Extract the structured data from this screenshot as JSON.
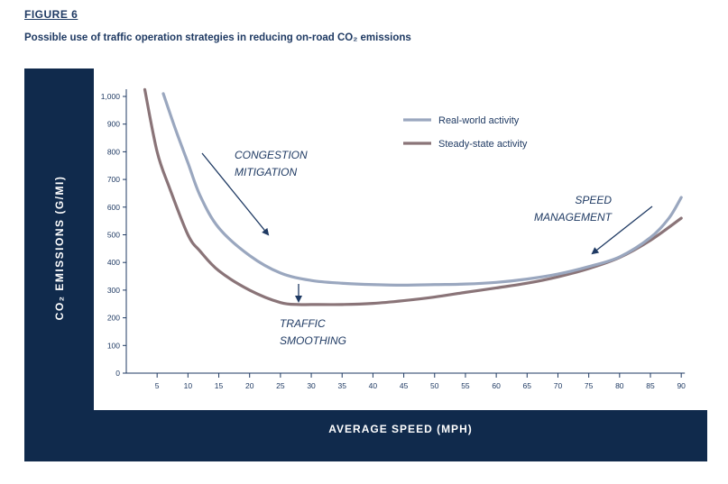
{
  "figure": {
    "label": "FIGURE 6",
    "caption": "Possible use of traffic operation strategies in reducing on-road CO₂ emissions"
  },
  "chart_data": {
    "type": "line",
    "title": "",
    "xlabel": "AVERAGE SPEED (MPH)",
    "ylabel": "CO₂ EMISSIONS (G/MI)",
    "xlim": [
      0,
      90
    ],
    "ylim": [
      0,
      1000
    ],
    "xticks": [
      "5",
      "10",
      "15",
      "20",
      "25",
      "30",
      "35",
      "40",
      "45",
      "50",
      "55",
      "60",
      "65",
      "70",
      "75",
      "80",
      "85",
      "90"
    ],
    "yticks": [
      "0",
      "100",
      "200",
      "300",
      "400",
      "500",
      "600",
      "700",
      "800",
      "900",
      "1,000"
    ],
    "grid": false,
    "legend_position": "top-right",
    "series": [
      {
        "name": "Real-world activity",
        "color": "#9aa7bf",
        "x": [
          6,
          8,
          10,
          12,
          15,
          20,
          25,
          30,
          35,
          40,
          45,
          50,
          55,
          60,
          65,
          70,
          75,
          80,
          85,
          88,
          90
        ],
        "y": [
          1010,
          880,
          760,
          640,
          525,
          425,
          362,
          335,
          325,
          320,
          318,
          320,
          322,
          328,
          340,
          358,
          385,
          420,
          490,
          560,
          635
        ]
      },
      {
        "name": "Steady-state activity",
        "color": "#8a7478",
        "x": [
          3,
          5,
          7,
          10,
          12,
          15,
          20,
          25,
          28,
          30,
          35,
          40,
          45,
          50,
          55,
          60,
          65,
          70,
          75,
          80,
          85,
          90
        ],
        "y": [
          1025,
          800,
          670,
          500,
          440,
          370,
          300,
          255,
          248,
          248,
          248,
          252,
          262,
          275,
          292,
          308,
          325,
          348,
          378,
          418,
          480,
          560
        ]
      }
    ],
    "annotations": [
      {
        "id": "congestion",
        "lines": [
          "CONGESTION",
          "MITIGATION"
        ]
      },
      {
        "id": "smoothing",
        "lines": [
          "TRAFFIC",
          "SMOOTHING"
        ]
      },
      {
        "id": "speed",
        "lines": [
          "SPEED",
          "MANAGEMENT"
        ]
      }
    ]
  }
}
